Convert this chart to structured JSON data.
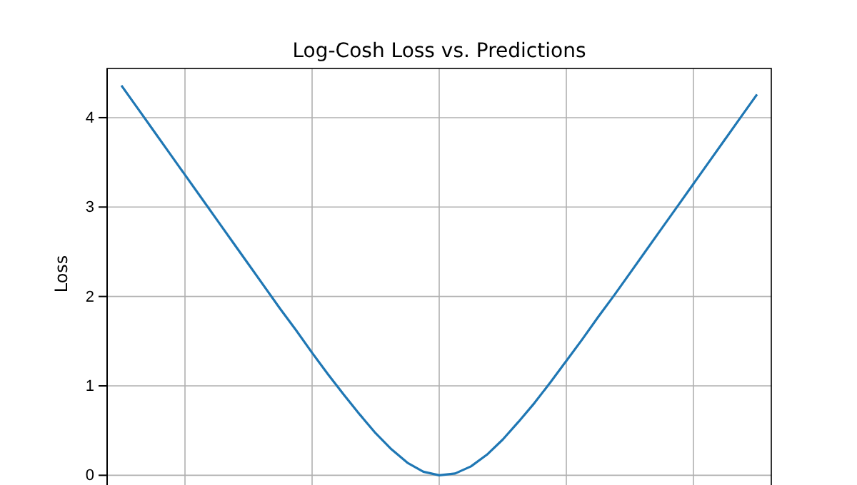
{
  "chart_data": {
    "type": "line",
    "title": "Log-Cosh Loss vs. Predictions",
    "ylabel": "Loss",
    "categories": [
      null,
      null,
      null,
      null,
      null,
      null,
      null,
      null,
      null,
      null,
      null,
      null,
      null,
      null,
      null,
      null,
      null,
      null,
      null,
      null,
      null,
      null,
      null,
      null,
      null,
      null,
      null,
      null,
      null,
      null,
      null,
      null,
      null,
      null,
      null,
      null,
      null,
      null,
      null,
      null,
      null
    ],
    "series": [
      {
        "color": "#1f77b4",
        "values": [
          4.36,
          4.11,
          3.86,
          3.61,
          3.36,
          3.11,
          2.86,
          2.61,
          2.36,
          2.11,
          1.86,
          1.62,
          1.37,
          1.13,
          0.9,
          0.68,
          0.47,
          0.29,
          0.14,
          0.04,
          0.0,
          0.02,
          0.1,
          0.23,
          0.4,
          0.6,
          0.81,
          1.04,
          1.28,
          1.52,
          1.77,
          2.01,
          2.26,
          2.51,
          2.76,
          3.01,
          3.26,
          3.51,
          3.76,
          4.01,
          4.26
        ]
      }
    ],
    "ylim": [
      -0.3,
      4.55
    ],
    "yticks": [
      0,
      1,
      2,
      3,
      4
    ],
    "grid": true
  }
}
